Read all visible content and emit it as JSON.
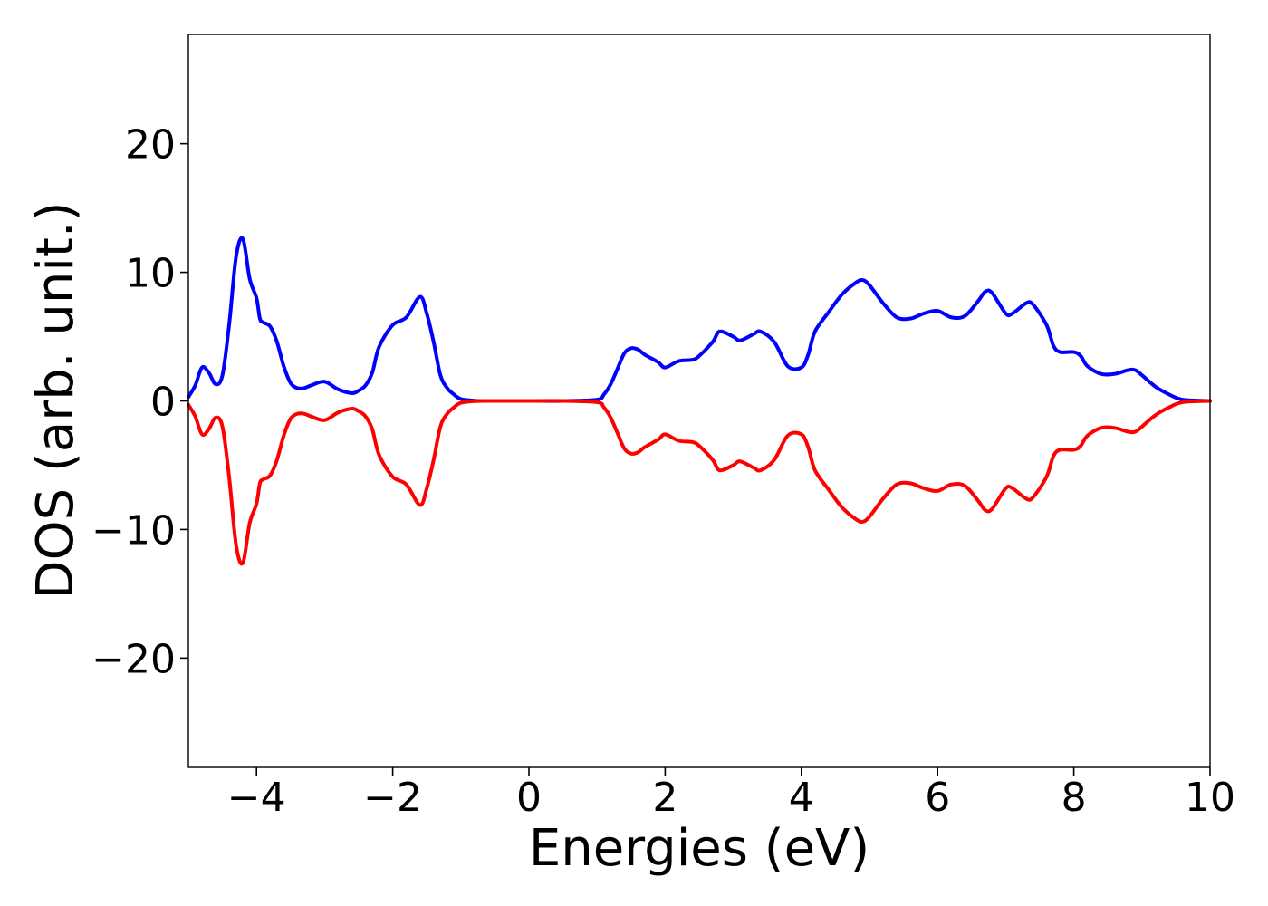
{
  "chart_data": {
    "type": "line",
    "title": "",
    "xlabel": "Energies (eV)",
    "ylabel": "DOS (arb. unit.)",
    "xlim": [
      -5,
      10
    ],
    "ylim": [
      -28.5,
      28.5
    ],
    "grid": false,
    "legend": "none",
    "x_ticks": [
      {
        "value": -4,
        "label": "−4"
      },
      {
        "value": -2,
        "label": "−2"
      },
      {
        "value": 0,
        "label": "0"
      },
      {
        "value": 2,
        "label": "2"
      },
      {
        "value": 4,
        "label": "4"
      },
      {
        "value": 6,
        "label": "6"
      },
      {
        "value": 8,
        "label": "8"
      },
      {
        "value": 10,
        "label": "10"
      }
    ],
    "y_ticks": [
      {
        "value": 20,
        "label": "20"
      },
      {
        "value": 10,
        "label": "10"
      },
      {
        "value": 0,
        "label": "0"
      },
      {
        "value": -10,
        "label": "−10"
      },
      {
        "value": -20,
        "label": "−20"
      }
    ],
    "series": [
      {
        "color": "#0000ff",
        "x": [
          -5.0,
          -4.9,
          -4.8,
          -4.7,
          -4.6,
          -4.5,
          -4.4,
          -4.3,
          -4.2,
          -4.1,
          -4.0,
          -3.95,
          -3.9,
          -3.8,
          -3.7,
          -3.6,
          -3.5,
          -3.4,
          -3.3,
          -3.2,
          -3.0,
          -2.8,
          -2.6,
          -2.5,
          -2.4,
          -2.3,
          -2.2,
          -2.0,
          -1.8,
          -1.6,
          -1.5,
          -1.4,
          -1.3,
          -1.2,
          -1.1,
          -1.0,
          -0.8,
          -0.6,
          -0.4,
          0.0,
          0.5,
          1.0,
          1.1,
          1.2,
          1.3,
          1.4,
          1.5,
          1.6,
          1.7,
          1.9,
          2.0,
          2.2,
          2.4,
          2.5,
          2.7,
          2.8,
          3.0,
          3.1,
          3.3,
          3.4,
          3.6,
          3.8,
          4.0,
          4.1,
          4.2,
          4.4,
          4.6,
          4.8,
          4.9,
          5.0,
          5.2,
          5.4,
          5.6,
          5.8,
          6.0,
          6.2,
          6.4,
          6.6,
          6.7,
          6.8,
          7.0,
          7.1,
          7.3,
          7.4,
          7.6,
          7.7,
          7.8,
          8.0,
          8.1,
          8.2,
          8.4,
          8.6,
          8.8,
          8.9,
          9.0,
          9.2,
          9.4,
          9.6,
          10.0
        ],
        "y": [
          0.3,
          1.2,
          2.6,
          2.2,
          1.3,
          2.0,
          6.0,
          11.2,
          12.6,
          9.5,
          8.0,
          6.4,
          6.1,
          5.8,
          4.6,
          2.7,
          1.4,
          1.0,
          1.0,
          1.2,
          1.5,
          0.9,
          0.6,
          0.8,
          1.2,
          2.2,
          4.2,
          5.9,
          6.5,
          8.1,
          6.8,
          4.6,
          2.0,
          1.0,
          0.5,
          0.15,
          0.02,
          0.0,
          0.0,
          0.0,
          0.0,
          0.1,
          0.5,
          1.3,
          2.5,
          3.7,
          4.1,
          4.0,
          3.6,
          3.0,
          2.6,
          3.1,
          3.2,
          3.5,
          4.6,
          5.4,
          5.0,
          4.7,
          5.2,
          5.4,
          4.6,
          2.7,
          2.6,
          3.6,
          5.4,
          6.9,
          8.3,
          9.2,
          9.4,
          9.0,
          7.6,
          6.5,
          6.4,
          6.8,
          7.0,
          6.5,
          6.6,
          7.8,
          8.5,
          8.4,
          6.8,
          6.8,
          7.6,
          7.5,
          5.9,
          4.3,
          3.8,
          3.8,
          3.5,
          2.7,
          2.1,
          2.1,
          2.4,
          2.4,
          2.0,
          1.1,
          0.5,
          0.1,
          0.0
        ]
      },
      {
        "color": "#ff0000",
        "x": [
          -5.0,
          -4.9,
          -4.8,
          -4.7,
          -4.6,
          -4.5,
          -4.4,
          -4.3,
          -4.2,
          -4.1,
          -4.0,
          -3.95,
          -3.9,
          -3.8,
          -3.7,
          -3.6,
          -3.5,
          -3.4,
          -3.3,
          -3.2,
          -3.0,
          -2.8,
          -2.6,
          -2.5,
          -2.4,
          -2.3,
          -2.2,
          -2.0,
          -1.8,
          -1.6,
          -1.5,
          -1.4,
          -1.3,
          -1.2,
          -1.1,
          -1.0,
          -0.8,
          -0.6,
          -0.4,
          0.0,
          0.5,
          1.0,
          1.1,
          1.2,
          1.3,
          1.4,
          1.5,
          1.6,
          1.7,
          1.9,
          2.0,
          2.2,
          2.4,
          2.5,
          2.7,
          2.8,
          3.0,
          3.1,
          3.3,
          3.4,
          3.6,
          3.8,
          4.0,
          4.1,
          4.2,
          4.4,
          4.6,
          4.8,
          4.9,
          5.0,
          5.2,
          5.4,
          5.6,
          5.8,
          6.0,
          6.2,
          6.4,
          6.6,
          6.7,
          6.8,
          7.0,
          7.1,
          7.3,
          7.4,
          7.6,
          7.7,
          7.8,
          8.0,
          8.1,
          8.2,
          8.4,
          8.6,
          8.8,
          8.9,
          9.0,
          9.2,
          9.4,
          9.6,
          10.0
        ],
        "y": [
          -0.3,
          -1.2,
          -2.6,
          -2.2,
          -1.3,
          -2.0,
          -6.0,
          -11.2,
          -12.6,
          -9.5,
          -8.0,
          -6.4,
          -6.1,
          -5.8,
          -4.6,
          -2.7,
          -1.4,
          -1.0,
          -1.0,
          -1.2,
          -1.5,
          -0.9,
          -0.6,
          -0.8,
          -1.2,
          -2.2,
          -4.2,
          -5.9,
          -6.5,
          -8.1,
          -6.8,
          -4.6,
          -2.0,
          -1.0,
          -0.5,
          -0.15,
          -0.02,
          0.0,
          0.0,
          0.0,
          0.0,
          -0.1,
          -0.5,
          -1.3,
          -2.5,
          -3.7,
          -4.1,
          -4.0,
          -3.6,
          -3.0,
          -2.6,
          -3.1,
          -3.2,
          -3.5,
          -4.6,
          -5.4,
          -5.0,
          -4.7,
          -5.2,
          -5.4,
          -4.6,
          -2.7,
          -2.6,
          -3.6,
          -5.4,
          -6.9,
          -8.3,
          -9.2,
          -9.4,
          -9.0,
          -7.6,
          -6.5,
          -6.4,
          -6.8,
          -7.0,
          -6.5,
          -6.6,
          -7.8,
          -8.5,
          -8.4,
          -6.8,
          -6.8,
          -7.6,
          -7.5,
          -5.9,
          -4.3,
          -3.8,
          -3.8,
          -3.5,
          -2.7,
          -2.1,
          -2.1,
          -2.4,
          -2.4,
          -2.0,
          -1.1,
          -0.5,
          -0.1,
          0.0
        ]
      }
    ]
  }
}
